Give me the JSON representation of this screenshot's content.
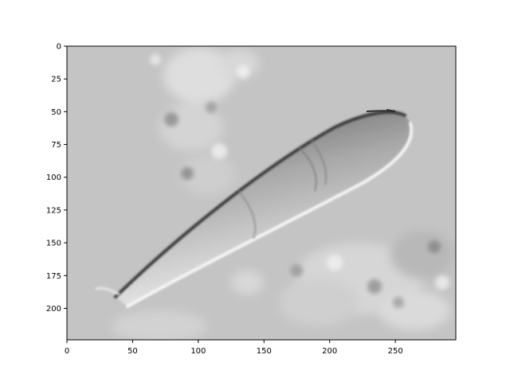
{
  "image": {
    "subject": "micrograph-cell",
    "colormap": "gray"
  },
  "axes": {
    "x_ticks": [
      0,
      50,
      100,
      150,
      200,
      250
    ],
    "y_ticks": [
      0,
      25,
      50,
      75,
      100,
      125,
      150,
      175,
      200
    ],
    "xlim": [
      0,
      296
    ],
    "ylim": [
      224,
      0
    ],
    "grid": false
  }
}
